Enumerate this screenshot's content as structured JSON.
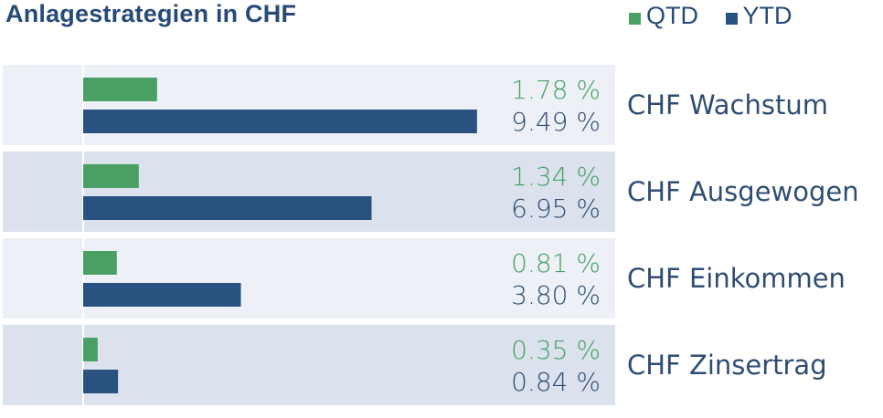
{
  "title": "Anlagestrategien in CHF",
  "legend": [
    {
      "label": "QTD",
      "color": "#4aa064"
    },
    {
      "label": "YTD",
      "color": "#2a5281"
    }
  ],
  "chart_data": {
    "type": "bar",
    "orientation": "horizontal",
    "title": "Anlagestrategien in CHF",
    "categories": [
      "CHF Wachstum",
      "CHF Ausgewogen",
      "CHF Einkommen",
      "CHF Zinsertrag"
    ],
    "series": [
      {
        "name": "QTD",
        "values": [
          1.78,
          1.34,
          0.81,
          0.35
        ],
        "labels": [
          "1.78 %",
          "1.34 %",
          "0.81 %",
          "0.35 %"
        ],
        "color": "#4aa064"
      },
      {
        "name": "YTD",
        "values": [
          9.49,
          6.95,
          3.8,
          0.84
        ],
        "labels": [
          "9.49 %",
          "6.95 %",
          "3.80 %",
          "0.84 %"
        ],
        "color": "#2a5281"
      }
    ],
    "unit": "%",
    "xlim": [
      0,
      10
    ],
    "legend_position": "top-right",
    "row_colors": [
      "#edf1f7",
      "#dbe2ed"
    ],
    "label_color": "#2f4d73"
  }
}
